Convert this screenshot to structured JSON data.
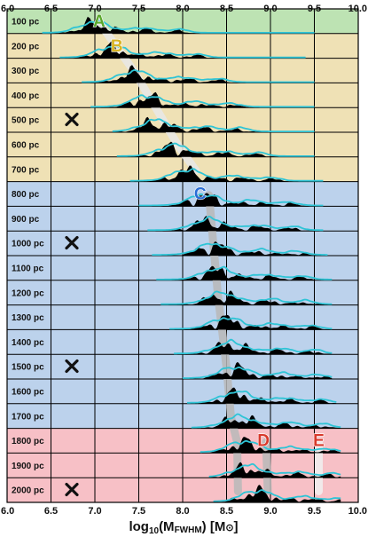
{
  "chart_data": {
    "type": "area",
    "x_axis": {
      "label_main": "log",
      "label_sub": "10",
      "label_paren": "(M",
      "label_fwhm": "FWHM",
      "label_close": ") [M",
      "label_sun": "⊙",
      "label_end": "]",
      "xlim": [
        6.0,
        10.0
      ],
      "ticks": [
        "6.0",
        "6.5",
        "7.0",
        "7.5",
        "8.0",
        "8.5",
        "9.0",
        "9.5",
        "10.0"
      ]
    },
    "grid": true,
    "region_colors": {
      "green": "#bde3b3",
      "tan": "#efe1b5",
      "blue": "#bcd2ec",
      "red": "#f7c0c6"
    },
    "curve_color_black": "#000000",
    "curve_color_cyan": "#2ec4d6",
    "track_color": "#b8b8b8",
    "rows": [
      {
        "label": "100 pc",
        "region": "green",
        "peak": 7.0,
        "start": 6.4,
        "end": 9.5,
        "cross": false
      },
      {
        "label": "200 pc",
        "region": "tan",
        "peak": 7.2,
        "start": 6.6,
        "end": 9.4,
        "cross": false
      },
      {
        "label": "300 pc",
        "region": "tan",
        "peak": 7.45,
        "start": 6.85,
        "end": 9.5,
        "cross": false
      },
      {
        "label": "400 pc",
        "region": "tan",
        "peak": 7.6,
        "start": 6.95,
        "end": 9.5,
        "cross": false
      },
      {
        "label": "500 pc",
        "region": "tan",
        "peak": 7.7,
        "start": 7.2,
        "end": 9.5,
        "cross": true
      },
      {
        "label": "600 pc",
        "region": "tan",
        "peak": 7.9,
        "start": 7.25,
        "end": 9.5,
        "cross": false
      },
      {
        "label": "700 pc",
        "region": "tan",
        "peak": 8.05,
        "start": 7.4,
        "end": 9.6,
        "cross": false
      },
      {
        "label": "800 pc",
        "region": "blue",
        "peak": 8.25,
        "start": 7.5,
        "end": 9.6,
        "cross": false
      },
      {
        "label": "900 pc",
        "region": "blue",
        "peak": 8.3,
        "start": 7.6,
        "end": 9.6,
        "cross": false
      },
      {
        "label": "1000 pc",
        "region": "blue",
        "peak": 8.35,
        "start": 7.65,
        "end": 9.65,
        "cross": true
      },
      {
        "label": "1100 pc",
        "region": "blue",
        "peak": 8.4,
        "start": 7.7,
        "end": 9.7,
        "cross": false
      },
      {
        "label": "1200 pc",
        "region": "blue",
        "peak": 8.45,
        "start": 7.75,
        "end": 9.7,
        "cross": false
      },
      {
        "label": "1300 pc",
        "region": "blue",
        "peak": 8.5,
        "start": 7.85,
        "end": 9.7,
        "cross": false
      },
      {
        "label": "1400 pc",
        "region": "blue",
        "peak": 8.55,
        "start": 7.9,
        "end": 9.7,
        "cross": false
      },
      {
        "label": "1500 pc",
        "region": "blue",
        "peak": 8.6,
        "start": 8.0,
        "end": 9.7,
        "cross": true
      },
      {
        "label": "1600 pc",
        "region": "blue",
        "peak": 8.62,
        "start": 8.05,
        "end": 9.75,
        "cross": false
      },
      {
        "label": "1700 pc",
        "region": "blue",
        "peak": 8.65,
        "start": 8.1,
        "end": 9.8,
        "cross": false
      },
      {
        "label": "1800 pc",
        "region": "red",
        "peak": 8.7,
        "start": 8.2,
        "end": 9.8,
        "cross": false
      },
      {
        "label": "1900 pc",
        "region": "red",
        "peak": 8.75,
        "start": 8.3,
        "end": 9.8,
        "cross": false
      },
      {
        "label": "2000 pc",
        "region": "red",
        "peak": 8.85,
        "start": 8.35,
        "end": 9.8,
        "cross": true
      }
    ],
    "annotations": [
      {
        "letter": "A",
        "x": 7.05,
        "row": 0,
        "color": "#5aa82c"
      },
      {
        "letter": "B",
        "x": 7.25,
        "row": 1,
        "color": "#d8b424"
      },
      {
        "letter": "C",
        "x": 8.2,
        "row": 7,
        "color": "#2a6ed6"
      },
      {
        "letter": "D",
        "x": 8.92,
        "row": 17,
        "color": "#d83a2c"
      },
      {
        "letter": "E",
        "x": 9.55,
        "row": 17,
        "color": "#d83a2c"
      }
    ],
    "tracks": [
      {
        "points": [
          [
            7.05,
            0
          ],
          [
            7.45,
            2
          ],
          [
            7.95,
            5
          ],
          [
            8.15,
            6
          ]
        ],
        "color": "#e8e8e8"
      },
      {
        "points": [
          [
            8.3,
            7
          ],
          [
            8.4,
            11
          ],
          [
            8.5,
            14
          ],
          [
            8.55,
            16
          ],
          [
            8.62,
            17
          ],
          [
            8.63,
            19
          ]
        ],
        "color": "#b8b8b8"
      },
      {
        "points": [
          [
            8.95,
            17
          ],
          [
            8.97,
            19
          ]
        ],
        "color": "#b8b8b8"
      },
      {
        "points": [
          [
            9.55,
            17
          ],
          [
            9.55,
            19
          ]
        ],
        "color": "#f0f0f0"
      }
    ]
  }
}
